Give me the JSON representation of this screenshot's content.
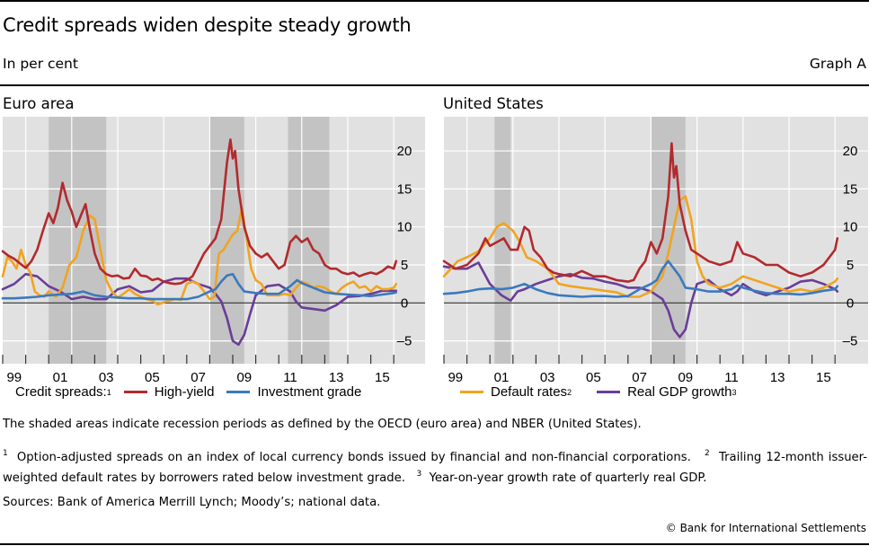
{
  "header": {
    "title": "Credit spreads widen despite steady growth",
    "units": "In per cent",
    "graph_id": "Graph A"
  },
  "legend": {
    "left": {
      "prefix": "Credit spreads:",
      "prefix_sup": "1",
      "items": [
        {
          "label": "High-yield",
          "sup": "",
          "color": "#b22a2e"
        },
        {
          "label": "Investment grade",
          "sup": "",
          "color": "#3a7abd"
        }
      ]
    },
    "right": {
      "items": [
        {
          "label": "Default rates",
          "sup": "2",
          "color": "#f0a421"
        },
        {
          "label": "Real GDP growth",
          "sup": "3",
          "color": "#6a3d99"
        }
      ]
    }
  },
  "notes": {
    "shaded": "The shaded areas indicate recession periods as defined by the OECD (euro area) and NBER (United States).",
    "fn1_sup": "1",
    "fn1": "Option-adjusted spreads on an index of local currency bonds issued by financial and non-financial corporations.",
    "fn2_sup": "2",
    "fn2": "Trailing 12-month issuer-weighted default rates by borrowers rated below investment grade.",
    "fn3_sup": "3",
    "fn3": "Year-on-year growth rate of quarterly real GDP.",
    "sources": "Sources: Bank of America Merrill Lynch; Moody’s; national data.",
    "copyright": "© Bank for International Settlements"
  },
  "chart_data": [
    {
      "type": "line",
      "title": "Euro area",
      "xlabel": "",
      "ylabel": "In per cent",
      "x_range": [
        1999.0,
        2017.4
      ],
      "ylim": [
        -8,
        24.5
      ],
      "yticks": [
        -5,
        0,
        5,
        10,
        15,
        20
      ],
      "xtick_labels": [
        "99",
        "01",
        "03",
        "05",
        "07",
        "09",
        "11",
        "13",
        "15"
      ],
      "xtick_years": [
        1999,
        2001,
        2003,
        2005,
        2007,
        2009,
        2011,
        2013,
        2015
      ],
      "grid": true,
      "y_axis_side": "right",
      "recessions": [
        [
          2001.0,
          2003.5
        ],
        [
          2008.0,
          2009.5
        ],
        [
          2011.4,
          2013.2
        ]
      ],
      "series": [
        {
          "name": "High-yield",
          "color": "#b22a2e",
          "x": [
            1999.0,
            1999.25,
            1999.5,
            1999.75,
            2000.0,
            2000.25,
            2000.5,
            2000.75,
            2001.0,
            2001.2,
            2001.4,
            2001.6,
            2001.8,
            2002.0,
            2002.2,
            2002.4,
            2002.6,
            2002.8,
            2003.0,
            2003.25,
            2003.5,
            2003.75,
            2004.0,
            2004.25,
            2004.5,
            2004.75,
            2005.0,
            2005.25,
            2005.5,
            2005.75,
            2006.0,
            2006.25,
            2006.5,
            2006.75,
            2007.0,
            2007.25,
            2007.5,
            2007.75,
            2008.0,
            2008.25,
            2008.5,
            2008.75,
            2008.9,
            2009.0,
            2009.1,
            2009.25,
            2009.5,
            2009.75,
            2010.0,
            2010.25,
            2010.5,
            2010.75,
            2011.0,
            2011.25,
            2011.5,
            2011.75,
            2012.0,
            2012.25,
            2012.5,
            2012.75,
            2013.0,
            2013.25,
            2013.5,
            2013.75,
            2014.0,
            2014.25,
            2014.5,
            2014.75,
            2015.0,
            2015.25,
            2015.5,
            2015.75,
            2016.0,
            2016.1
          ],
          "values": [
            6.8,
            6.2,
            5.8,
            5.2,
            4.6,
            5.5,
            7.0,
            9.5,
            11.8,
            10.5,
            12.5,
            15.8,
            13.5,
            12.0,
            10.0,
            11.5,
            13.0,
            9.5,
            6.5,
            4.5,
            3.8,
            3.5,
            3.6,
            3.2,
            3.3,
            4.5,
            3.6,
            3.5,
            3.0,
            3.2,
            2.8,
            2.6,
            2.5,
            2.6,
            3.0,
            3.5,
            5.0,
            6.5,
            7.5,
            8.5,
            11.0,
            18.5,
            21.5,
            19.0,
            20.0,
            15.0,
            10.0,
            7.5,
            6.5,
            6.0,
            6.5,
            5.5,
            4.5,
            5.0,
            8.0,
            8.8,
            8.0,
            8.5,
            7.0,
            6.5,
            5.0,
            4.5,
            4.5,
            4.0,
            3.8,
            4.0,
            3.5,
            3.8,
            4.0,
            3.8,
            4.2,
            4.8,
            4.5,
            5.5
          ]
        },
        {
          "name": "Investment grade",
          "color": "#3a7abd",
          "x": [
            1999.0,
            1999.5,
            2000.0,
            2000.5,
            2001.0,
            2001.5,
            2002.0,
            2002.5,
            2003.0,
            2003.5,
            2004.0,
            2004.5,
            2005.0,
            2005.5,
            2006.0,
            2006.5,
            2007.0,
            2007.5,
            2008.0,
            2008.25,
            2008.5,
            2008.75,
            2009.0,
            2009.25,
            2009.5,
            2010.0,
            2010.5,
            2011.0,
            2011.5,
            2011.8,
            2012.0,
            2012.5,
            2013.0,
            2013.5,
            2014.0,
            2014.5,
            2015.0,
            2015.5,
            2016.0,
            2016.1
          ],
          "values": [
            0.6,
            0.6,
            0.7,
            0.8,
            1.0,
            1.1,
            1.2,
            1.5,
            1.0,
            0.8,
            0.7,
            0.6,
            0.6,
            0.5,
            0.5,
            0.5,
            0.5,
            0.8,
            1.5,
            1.8,
            2.8,
            3.6,
            3.8,
            2.5,
            1.5,
            1.3,
            1.2,
            1.2,
            2.2,
            3.0,
            2.6,
            2.0,
            1.4,
            1.2,
            1.1,
            1.0,
            0.9,
            1.1,
            1.3,
            1.4
          ]
        },
        {
          "name": "Default rates",
          "color": "#f0a421",
          "x": [
            1999.0,
            1999.2,
            1999.4,
            1999.6,
            1999.8,
            2000.0,
            2000.2,
            2000.4,
            2000.6,
            2000.8,
            2001.0,
            2001.3,
            2001.6,
            2001.9,
            2002.2,
            2002.5,
            2002.8,
            2003.0,
            2003.25,
            2003.5,
            2003.75,
            2004.0,
            2004.25,
            2004.5,
            2004.75,
            2005.0,
            2005.25,
            2005.5,
            2005.75,
            2006.0,
            2006.25,
            2006.5,
            2006.75,
            2007.0,
            2007.25,
            2007.5,
            2007.75,
            2008.0,
            2008.2,
            2008.4,
            2008.6,
            2008.8,
            2009.0,
            2009.2,
            2009.4,
            2009.6,
            2009.8,
            2010.0,
            2010.25,
            2010.5,
            2010.75,
            2011.0,
            2011.25,
            2011.5,
            2011.75,
            2012.0,
            2012.25,
            2012.5,
            2012.75,
            2013.0,
            2013.25,
            2013.5,
            2013.75,
            2014.0,
            2014.25,
            2014.5,
            2014.75,
            2015.0,
            2015.25,
            2015.5,
            2015.75,
            2016.0,
            2016.1
          ],
          "values": [
            3.5,
            6.0,
            5.5,
            4.5,
            7.0,
            5.0,
            4.0,
            1.5,
            1.0,
            0.8,
            1.5,
            0.8,
            2.0,
            5.0,
            6.0,
            9.5,
            11.5,
            11.0,
            7.0,
            3.0,
            1.5,
            0.7,
            1.2,
            1.8,
            1.2,
            0.8,
            0.5,
            0.3,
            -0.2,
            0.1,
            0.3,
            0.5,
            0.4,
            2.5,
            2.8,
            2.5,
            1.5,
            0.5,
            0.8,
            6.5,
            7.0,
            8.0,
            9.0,
            9.5,
            12.5,
            8.5,
            4.5,
            3.0,
            2.5,
            1.0,
            1.0,
            1.0,
            1.2,
            1.0,
            2.0,
            2.8,
            2.5,
            2.0,
            2.2,
            2.0,
            1.5,
            1.2,
            2.0,
            2.5,
            2.8,
            2.0,
            2.2,
            1.5,
            2.2,
            1.8,
            1.8,
            2.0,
            2.5
          ]
        },
        {
          "name": "Real GDP growth",
          "color": "#6a3d99",
          "x": [
            1999.0,
            1999.5,
            2000.0,
            2000.5,
            2001.0,
            2001.5,
            2002.0,
            2002.5,
            2003.0,
            2003.5,
            2004.0,
            2004.5,
            2005.0,
            2005.5,
            2006.0,
            2006.5,
            2007.0,
            2007.5,
            2008.0,
            2008.25,
            2008.5,
            2008.75,
            2009.0,
            2009.25,
            2009.5,
            2009.75,
            2010.0,
            2010.5,
            2011.0,
            2011.5,
            2011.75,
            2012.0,
            2012.5,
            2013.0,
            2013.5,
            2014.0,
            2014.5,
            2015.0,
            2015.5,
            2016.0,
            2016.1
          ],
          "values": [
            1.8,
            2.5,
            3.8,
            3.5,
            2.2,
            1.5,
            0.5,
            0.8,
            0.5,
            0.5,
            1.8,
            2.2,
            1.4,
            1.6,
            2.8,
            3.2,
            3.2,
            2.5,
            2.0,
            1.2,
            0.2,
            -2.0,
            -5.0,
            -5.5,
            -4.2,
            -1.5,
            1.0,
            2.2,
            2.4,
            1.5,
            0.2,
            -0.6,
            -0.8,
            -1.0,
            -0.3,
            0.8,
            0.9,
            1.2,
            1.6,
            1.6,
            1.6
          ]
        }
      ]
    },
    {
      "type": "line",
      "title": "United States",
      "xlabel": "",
      "ylabel": "In per cent",
      "x_range": [
        1999.0,
        2017.4
      ],
      "ylim": [
        -8,
        24.5
      ],
      "yticks": [
        -5,
        0,
        5,
        10,
        15,
        20
      ],
      "xtick_labels": [
        "99",
        "01",
        "03",
        "05",
        "07",
        "09",
        "11",
        "13",
        "15"
      ],
      "xtick_years": [
        1999,
        2001,
        2003,
        2005,
        2007,
        2009,
        2011,
        2013,
        2015
      ],
      "grid": true,
      "y_axis_side": "right",
      "recessions": [
        [
          2001.2,
          2001.9
        ],
        [
          2008.0,
          2009.5
        ]
      ],
      "series": [
        {
          "name": "High-yield",
          "color": "#b22a2e",
          "x": [
            1999.0,
            1999.5,
            2000.0,
            2000.5,
            2000.8,
            2001.0,
            2001.3,
            2001.6,
            2001.9,
            2002.2,
            2002.5,
            2002.7,
            2002.9,
            2003.2,
            2003.5,
            2003.75,
            2004.0,
            2004.5,
            2005.0,
            2005.5,
            2006.0,
            2006.5,
            2007.0,
            2007.25,
            2007.5,
            2007.75,
            2008.0,
            2008.25,
            2008.5,
            2008.75,
            2008.9,
            2009.0,
            2009.1,
            2009.25,
            2009.5,
            2009.75,
            2010.0,
            2010.5,
            2011.0,
            2011.5,
            2011.75,
            2012.0,
            2012.5,
            2013.0,
            2013.5,
            2014.0,
            2014.5,
            2015.0,
            2015.5,
            2016.0,
            2016.1
          ],
          "values": [
            5.5,
            4.5,
            5.0,
            6.5,
            8.5,
            7.5,
            8.0,
            8.5,
            7.0,
            7.0,
            10.0,
            9.5,
            7.0,
            6.0,
            4.5,
            4.0,
            3.8,
            3.5,
            4.2,
            3.5,
            3.5,
            3.0,
            2.8,
            3.0,
            4.5,
            5.5,
            8.0,
            6.5,
            8.5,
            14.0,
            21.0,
            16.5,
            18.0,
            13.0,
            9.5,
            7.0,
            6.5,
            5.5,
            5.0,
            5.5,
            8.0,
            6.5,
            6.0,
            5.0,
            5.0,
            4.0,
            3.5,
            4.0,
            5.0,
            7.0,
            8.5
          ]
        },
        {
          "name": "Investment grade",
          "color": "#3a7abd",
          "x": [
            1999.0,
            1999.5,
            2000.0,
            2000.5,
            2001.0,
            2001.5,
            2002.0,
            2002.5,
            2003.0,
            2003.5,
            2004.0,
            2004.5,
            2005.0,
            2005.5,
            2006.0,
            2006.5,
            2007.0,
            2007.5,
            2008.0,
            2008.25,
            2008.5,
            2008.75,
            2009.0,
            2009.25,
            2009.5,
            2010.0,
            2010.5,
            2011.0,
            2011.5,
            2011.75,
            2012.0,
            2012.5,
            2013.0,
            2013.5,
            2014.0,
            2014.5,
            2015.0,
            2015.5,
            2016.0,
            2016.1
          ],
          "values": [
            1.2,
            1.3,
            1.5,
            1.8,
            1.9,
            1.8,
            2.0,
            2.5,
            1.8,
            1.3,
            1.0,
            0.9,
            0.8,
            0.9,
            0.9,
            0.8,
            0.9,
            1.8,
            2.5,
            3.0,
            4.5,
            5.5,
            4.5,
            3.5,
            2.0,
            1.8,
            1.5,
            1.5,
            1.8,
            2.3,
            2.0,
            1.6,
            1.3,
            1.2,
            1.2,
            1.1,
            1.3,
            1.6,
            1.8,
            2.2
          ]
        },
        {
          "name": "Default rates",
          "color": "#f0a421",
          "x": [
            1999.0,
            1999.3,
            1999.6,
            2000.0,
            2000.5,
            2001.0,
            2001.3,
            2001.6,
            2002.0,
            2002.3,
            2002.6,
            2003.0,
            2003.5,
            2004.0,
            2004.5,
            2005.0,
            2005.5,
            2006.0,
            2006.5,
            2007.0,
            2007.5,
            2008.0,
            2008.5,
            2008.75,
            2009.0,
            2009.25,
            2009.5,
            2009.75,
            2010.0,
            2010.25,
            2010.5,
            2011.0,
            2011.5,
            2012.0,
            2012.5,
            2013.0,
            2013.5,
            2014.0,
            2014.5,
            2015.0,
            2015.5,
            2016.0,
            2016.1
          ],
          "values": [
            3.5,
            4.5,
            5.5,
            6.0,
            6.8,
            8.5,
            10.0,
            10.5,
            9.5,
            8.0,
            6.0,
            5.5,
            4.5,
            2.5,
            2.2,
            2.0,
            1.8,
            1.6,
            1.4,
            0.8,
            0.8,
            1.5,
            3.5,
            6.5,
            10.0,
            13.5,
            14.0,
            11.0,
            5.5,
            3.5,
            2.5,
            2.0,
            2.5,
            3.5,
            3.0,
            2.5,
            2.0,
            1.5,
            1.8,
            1.5,
            2.0,
            2.8,
            3.2
          ]
        },
        {
          "name": "Real GDP growth",
          "color": "#6a3d99",
          "x": [
            1999.0,
            1999.5,
            2000.0,
            2000.5,
            2001.0,
            2001.5,
            2001.9,
            2002.2,
            2002.5,
            2003.0,
            2003.5,
            2004.0,
            2004.5,
            2005.0,
            2005.5,
            2006.0,
            2006.5,
            2007.0,
            2007.5,
            2008.0,
            2008.5,
            2008.75,
            2009.0,
            2009.25,
            2009.5,
            2009.75,
            2010.0,
            2010.5,
            2011.0,
            2011.5,
            2011.75,
            2012.0,
            2012.5,
            2013.0,
            2013.5,
            2014.0,
            2014.5,
            2015.0,
            2015.5,
            2016.0,
            2016.1
          ],
          "values": [
            4.8,
            4.5,
            4.5,
            5.3,
            2.5,
            1.0,
            0.3,
            1.5,
            1.8,
            2.5,
            3.0,
            3.5,
            3.8,
            3.3,
            3.2,
            2.8,
            2.5,
            2.0,
            2.0,
            1.5,
            0.5,
            -1.0,
            -3.5,
            -4.5,
            -3.5,
            0.0,
            2.5,
            3.0,
            1.8,
            1.0,
            1.5,
            2.5,
            1.5,
            1.0,
            1.5,
            2.0,
            2.8,
            3.0,
            2.5,
            1.8,
            1.5
          ]
        }
      ]
    }
  ]
}
